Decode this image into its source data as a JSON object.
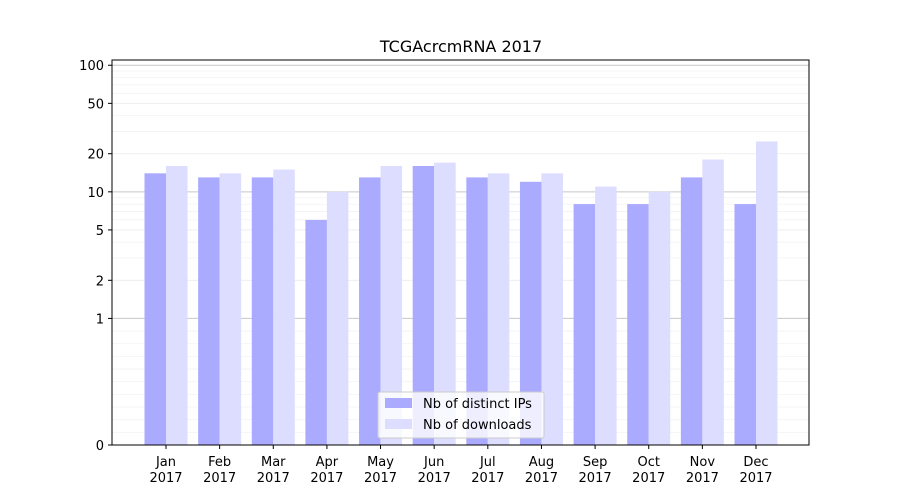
{
  "chart_data": {
    "type": "bar",
    "title": "TCGAcrcmRNA 2017",
    "xlabel": "",
    "ylabel": "",
    "yscale": "symlog",
    "ylim": [
      0,
      110
    ],
    "yticks": [
      0,
      1,
      2,
      5,
      10,
      20,
      50,
      100
    ],
    "ytick_labels": [
      "0",
      "1",
      "2",
      "5",
      "10",
      "20",
      "50",
      "100"
    ],
    "categories": [
      [
        "Jan",
        "2017"
      ],
      [
        "Feb",
        "2017"
      ],
      [
        "Mar",
        "2017"
      ],
      [
        "Apr",
        "2017"
      ],
      [
        "May",
        "2017"
      ],
      [
        "Jun",
        "2017"
      ],
      [
        "Jul",
        "2017"
      ],
      [
        "Aug",
        "2017"
      ],
      [
        "Sep",
        "2017"
      ],
      [
        "Oct",
        "2017"
      ],
      [
        "Nov",
        "2017"
      ],
      [
        "Dec",
        "2017"
      ]
    ],
    "series": [
      {
        "name": "Nb of distinct IPs",
        "color": "#aaaaff",
        "values": [
          14,
          13,
          13,
          6,
          13,
          16,
          13,
          12,
          8,
          8,
          13,
          8
        ]
      },
      {
        "name": "Nb of downloads",
        "color": "#ddddff",
        "values": [
          16,
          14,
          15,
          10,
          16,
          17,
          14,
          14,
          11,
          10,
          18,
          25
        ]
      }
    ],
    "grid": true,
    "legend": "bottom-center"
  }
}
